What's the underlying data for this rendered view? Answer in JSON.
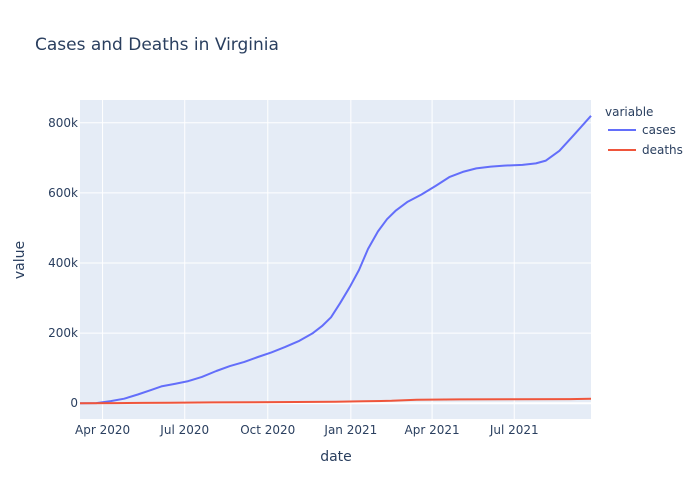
{
  "chart_data": {
    "type": "line",
    "title": "Cases and Deaths in Virginia",
    "xlabel": "date",
    "ylabel": "value",
    "legend_title": "variable",
    "legend_position": "right",
    "grid": true,
    "xlim": [
      "2020-03-07",
      "2021-09-24"
    ],
    "ylim": [
      -45000,
      865000
    ],
    "x_ticks": [
      {
        "date": "2020-04-01",
        "label": "Apr 2020"
      },
      {
        "date": "2020-07-01",
        "label": "Jul 2020"
      },
      {
        "date": "2020-10-01",
        "label": "Oct 2020"
      },
      {
        "date": "2021-01-01",
        "label": "Jan 2021"
      },
      {
        "date": "2021-04-01",
        "label": "Apr 2021"
      },
      {
        "date": "2021-07-01",
        "label": "Jul 2021"
      }
    ],
    "y_ticks": [
      {
        "value": 0,
        "label": "0"
      },
      {
        "value": 200000,
        "label": "200k"
      },
      {
        "value": 400000,
        "label": "400k"
      },
      {
        "value": 600000,
        "label": "600k"
      },
      {
        "value": 800000,
        "label": "800k"
      }
    ],
    "series": [
      {
        "name": "cases",
        "color": "#636efa",
        "points": [
          [
            "2020-03-07",
            0
          ],
          [
            "2020-03-25",
            500
          ],
          [
            "2020-04-10",
            6000
          ],
          [
            "2020-04-25",
            13000
          ],
          [
            "2020-05-10",
            25000
          ],
          [
            "2020-05-25",
            38000
          ],
          [
            "2020-06-05",
            48000
          ],
          [
            "2020-06-20",
            55000
          ],
          [
            "2020-07-05",
            63000
          ],
          [
            "2020-07-20",
            75000
          ],
          [
            "2020-08-05",
            92000
          ],
          [
            "2020-08-20",
            106000
          ],
          [
            "2020-09-05",
            118000
          ],
          [
            "2020-09-20",
            132000
          ],
          [
            "2020-10-05",
            145000
          ],
          [
            "2020-10-20",
            160000
          ],
          [
            "2020-11-05",
            178000
          ],
          [
            "2020-11-20",
            200000
          ],
          [
            "2020-11-30",
            220000
          ],
          [
            "2020-12-10",
            245000
          ],
          [
            "2020-12-20",
            285000
          ],
          [
            "2020-12-31",
            332000
          ],
          [
            "2021-01-10",
            380000
          ],
          [
            "2021-01-20",
            440000
          ],
          [
            "2021-01-31",
            490000
          ],
          [
            "2021-02-10",
            525000
          ],
          [
            "2021-02-20",
            550000
          ],
          [
            "2021-03-05",
            575000
          ],
          [
            "2021-03-20",
            595000
          ],
          [
            "2021-04-05",
            620000
          ],
          [
            "2021-04-20",
            645000
          ],
          [
            "2021-05-05",
            660000
          ],
          [
            "2021-05-20",
            670000
          ],
          [
            "2021-06-05",
            675000
          ],
          [
            "2021-06-20",
            678000
          ],
          [
            "2021-07-10",
            680000
          ],
          [
            "2021-07-25",
            684000
          ],
          [
            "2021-08-05",
            692000
          ],
          [
            "2021-08-20",
            720000
          ],
          [
            "2021-09-05",
            765000
          ],
          [
            "2021-09-24",
            820000
          ]
        ]
      },
      {
        "name": "deaths",
        "color": "#ef553b",
        "points": [
          [
            "2020-03-07",
            0
          ],
          [
            "2020-04-15",
            300
          ],
          [
            "2020-05-15",
            1000
          ],
          [
            "2020-06-15",
            1600
          ],
          [
            "2020-08-01",
            2300
          ],
          [
            "2020-09-15",
            3000
          ],
          [
            "2020-11-01",
            3600
          ],
          [
            "2020-12-15",
            4300
          ],
          [
            "2021-01-15",
            5500
          ],
          [
            "2021-02-15",
            7000
          ],
          [
            "2021-03-15",
            10000
          ],
          [
            "2021-05-01",
            11000
          ],
          [
            "2021-07-01",
            11400
          ],
          [
            "2021-09-01",
            11700
          ],
          [
            "2021-09-24",
            12500
          ]
        ]
      }
    ]
  }
}
